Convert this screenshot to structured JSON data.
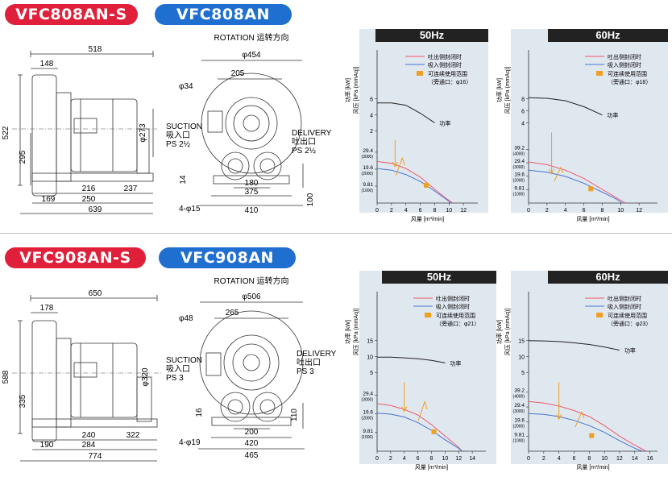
{
  "sections": [
    {
      "model_s": "VFC808AN-S",
      "model": "VFC808AN",
      "side": {
        "d518": "518",
        "d148": "148",
        "d522": "522",
        "d295": "295",
        "d273": "φ273",
        "d169": "169",
        "d216": "216",
        "d250": "250",
        "d237": "237",
        "d639": "639"
      },
      "front": {
        "rotation": "ROTATION 运转方向",
        "d454": "φ454",
        "d205": "205",
        "d34": "φ34",
        "suction_en": "SUCTION",
        "suction_cn": "吸入口",
        "suction_ps": "PS 2½",
        "delivery_en": "DELIVERY",
        "delivery_cn": "吐出口",
        "delivery_ps": "PS 2½",
        "d14": "14",
        "d180": "180",
        "d375": "375",
        "d410": "410",
        "d100": "100",
        "d15": "4-φ15"
      }
    },
    {
      "model_s": "VFC908AN-S",
      "model": "VFC908AN",
      "side": {
        "d518": "650",
        "d148": "178",
        "d522": "588",
        "d295": "335",
        "d273": "φ320",
        "d169": "190",
        "d216": "240",
        "d250": "284",
        "d237": "322",
        "d639": "774"
      },
      "front": {
        "rotation": "ROTATION 运转方向",
        "d454": "φ506",
        "d205": "265",
        "d34": "φ48",
        "suction_en": "SUCTION",
        "suction_cn": "吸入口",
        "suction_ps": "PS 3",
        "delivery_en": "DELIVERY",
        "delivery_cn": "吐出口",
        "delivery_ps": "PS 3",
        "d14": "16",
        "d180": "200",
        "d375": "420",
        "d410": "465",
        "d100": "110",
        "d15": "4-φ19"
      }
    }
  ],
  "chart_common": {
    "y_power_label": "功率 [kW]",
    "y_pressure_label": "风压 [kPa (mmAq)]",
    "x_label": "风量 [m³/min]",
    "legend_delivery": "吐出侧封闭时",
    "legend_suction": "吸入侧封闭时",
    "legend_range": "可连续使用范围",
    "power_label": "功率",
    "color_delivery": "#ef5a6a",
    "color_suction": "#4a74d0",
    "color_power": "#222222",
    "color_range": "#f0a020"
  },
  "chart_data": [
    {
      "type": "line",
      "title": "50Hz",
      "bypass": "（旁通口：φ16）",
      "x_ticks": [
        "0",
        "2",
        "4",
        "6",
        "8",
        "10",
        "12"
      ],
      "x_max": 14,
      "power_ticks": [
        "2",
        "4",
        "6"
      ],
      "pressure_ticks": [
        {
          "kpa": "9.81",
          "mm": "(1000)"
        },
        {
          "kpa": "19.6",
          "mm": "(2000)"
        },
        {
          "kpa": "29.4",
          "mm": "(3000)"
        }
      ],
      "power_series": {
        "name": "功率",
        "x": [
          0,
          2,
          4,
          6,
          8
        ],
        "y": [
          5.5,
          5.5,
          5.2,
          4.2,
          3.0
        ]
      },
      "delivery_series": {
        "name": "吐出侧封闭时",
        "x": [
          0,
          2,
          4,
          6,
          8,
          9.5,
          10.5
        ],
        "y": [
          24,
          23,
          20,
          15,
          8,
          3,
          0
        ]
      },
      "suction_series": {
        "name": "吸入侧封闭时",
        "x": [
          0,
          2,
          4,
          6,
          8,
          9.5,
          10.3
        ],
        "y": [
          20,
          19,
          16.5,
          12.5,
          7,
          2.5,
          0
        ]
      }
    },
    {
      "type": "line",
      "title": "60Hz",
      "bypass": "（旁通口：φ18）",
      "x_ticks": [
        "0",
        "2",
        "4",
        "6",
        "8",
        "10",
        "12"
      ],
      "x_max": 14,
      "power_ticks": [
        "4",
        "6",
        "8"
      ],
      "pressure_ticks": [
        {
          "kpa": "9.81",
          "mm": "(1000)"
        },
        {
          "kpa": "19.6",
          "mm": "(2000)"
        },
        {
          "kpa": "29.4",
          "mm": "(3000)"
        },
        {
          "kpa": "39.2",
          "mm": "(4000)"
        }
      ],
      "power_series": {
        "name": "功率",
        "x": [
          0,
          2,
          4,
          6,
          8
        ],
        "y": [
          8.2,
          8.1,
          7.7,
          6.7,
          5.3
        ]
      },
      "delivery_series": {
        "name": "吐出侧封闭时",
        "x": [
          0,
          2,
          4,
          6,
          8,
          9.5,
          10.5
        ],
        "y": [
          30,
          28,
          24,
          18,
          10,
          4,
          0
        ]
      },
      "suction_series": {
        "name": "吸入侧封闭时",
        "x": [
          0,
          2,
          4,
          6,
          8,
          9.5,
          10.2
        ],
        "y": [
          24,
          22.5,
          19.5,
          14.5,
          8,
          3,
          0
        ]
      }
    },
    {
      "type": "line",
      "title": "50Hz",
      "bypass": "（旁通口：φ21）",
      "x_ticks": [
        "0",
        "2",
        "4",
        "6",
        "8",
        "10",
        "12",
        "14"
      ],
      "x_max": 16,
      "power_ticks": [
        "5",
        "10",
        "15"
      ],
      "pressure_ticks": [
        {
          "kpa": "9.81",
          "mm": "(1000)"
        },
        {
          "kpa": "19.6",
          "mm": "(2000)"
        },
        {
          "kpa": "29.4",
          "mm": "(3000)"
        }
      ],
      "power_series": {
        "name": "功率",
        "x": [
          0,
          2,
          4,
          6,
          8,
          10
        ],
        "y": [
          9.8,
          9.8,
          9.6,
          9.3,
          8.8,
          8.0
        ]
      },
      "delivery_series": {
        "name": "吐出侧封闭时",
        "x": [
          0,
          2,
          4,
          6,
          8,
          10,
          12,
          12.5
        ],
        "y": [
          25,
          24,
          22,
          19,
          14,
          8,
          2,
          0
        ]
      },
      "suction_series": {
        "name": "吸入侧封闭时",
        "x": [
          0,
          2,
          4,
          6,
          8,
          10,
          12,
          12.5
        ],
        "y": [
          20,
          19.5,
          18,
          15,
          11,
          6,
          1.5,
          0
        ]
      }
    },
    {
      "type": "line",
      "title": "60Hz",
      "bypass": "（旁通口：φ23）",
      "x_ticks": [
        "0",
        "2",
        "4",
        "6",
        "8",
        "10",
        "12",
        "14",
        "16"
      ],
      "x_max": 17,
      "power_ticks": [
        "5",
        "10",
        "15"
      ],
      "pressure_ticks": [
        {
          "kpa": "9.81",
          "mm": "(1000)"
        },
        {
          "kpa": "19.6",
          "mm": "(2000)"
        },
        {
          "kpa": "29.4",
          "mm": "(3000)"
        },
        {
          "kpa": "39.2",
          "mm": "(4000)"
        }
      ],
      "power_series": {
        "name": "功率",
        "x": [
          0,
          2,
          4,
          6,
          8,
          10,
          12
        ],
        "y": [
          15,
          14.9,
          14.7,
          14.3,
          13.8,
          13,
          12
        ]
      },
      "delivery_series": {
        "name": "吐出侧封闭时",
        "x": [
          0,
          2,
          4,
          6,
          8,
          10,
          12,
          14,
          15.5
        ],
        "y": [
          33,
          32,
          30,
          27,
          23,
          17,
          10,
          4,
          0
        ]
      },
      "suction_series": {
        "name": "吸入侧封闭时",
        "x": [
          0,
          2,
          4,
          6,
          8,
          10,
          12,
          14,
          15
        ],
        "y": [
          25,
          24.5,
          23,
          20.5,
          17,
          12.5,
          7,
          2,
          0
        ]
      }
    }
  ]
}
